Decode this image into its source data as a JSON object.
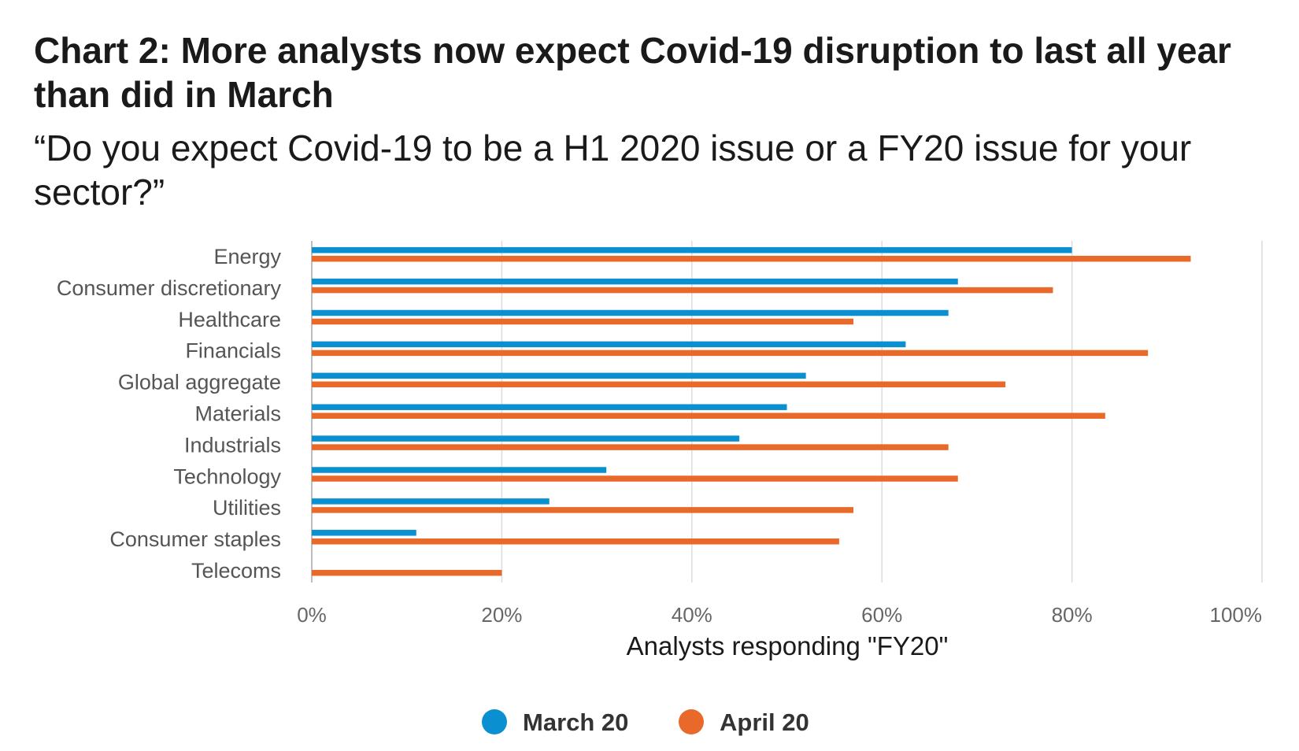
{
  "chart_data": {
    "type": "bar",
    "orientation": "horizontal",
    "title": "Chart 2: More analysts now expect Covid-19 disruption to last all year than did in March",
    "subtitle": "“Do you expect Covid-19 to be a H1 2020 issue or a FY20 issue for your sector?”",
    "xlabel": "Analysts responding \"FY20\"",
    "ylabel": "",
    "xlim": [
      0,
      100
    ],
    "x_ticks": [
      "0%",
      "20%",
      "40%",
      "60%",
      "80%",
      "100%"
    ],
    "grid": true,
    "legend_position": "bottom",
    "categories": [
      "Energy",
      "Consumer discretionary",
      "Healthcare",
      "Financials",
      "Global aggregate",
      "Materials",
      "Industrials",
      "Technology",
      "Utilities",
      "Consumer staples",
      "Telecoms"
    ],
    "series": [
      {
        "name": "March 20",
        "color": "#0a8fd0",
        "values": [
          80,
          68,
          67,
          62.5,
          52,
          50,
          45,
          31,
          25,
          11,
          0
        ]
      },
      {
        "name": "April 20",
        "color": "#e8692a",
        "values": [
          92.5,
          78,
          57,
          88,
          73,
          83.5,
          67,
          68,
          57,
          55.5,
          20
        ]
      }
    ]
  }
}
